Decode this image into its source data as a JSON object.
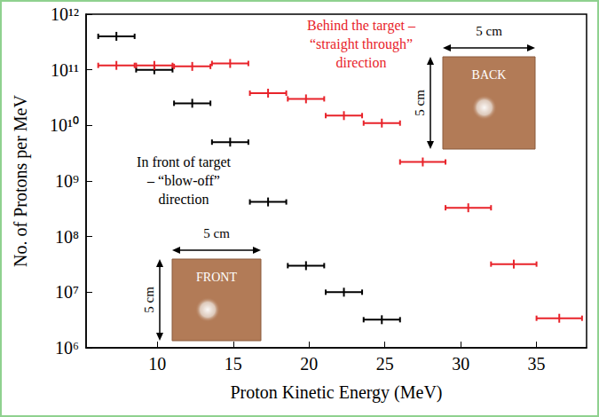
{
  "chart_data": {
    "type": "scatter",
    "x_label": "Proton Kinetic Energy (MeV)",
    "y_label": "No. of Protons per MeV",
    "log": "y",
    "grid": false,
    "xlim": [
      5.3,
      38.3
    ],
    "xticks": [
      10,
      15,
      20,
      25,
      30,
      35
    ],
    "ylim": [
      1000000,
      1000000000000
    ],
    "yticks": [
      {
        "value": 1000000,
        "label": "10⁶"
      },
      {
        "value": 10000000,
        "label": "10⁷"
      },
      {
        "value": 100000000,
        "label": "10⁸"
      },
      {
        "value": 1000000000,
        "label": "10⁹"
      },
      {
        "value": 10000000000,
        "label": "10¹⁰"
      },
      {
        "value": 100000000000,
        "label": "10¹¹"
      },
      {
        "value": 1000000000000,
        "label": "10¹²"
      }
    ],
    "series": [
      {
        "color": "#000000",
        "marker": "cross",
        "x": [
          7.3,
          9.8,
          12.3,
          14.8,
          17.3,
          19.8,
          22.3,
          24.8
        ],
        "xerr": [
          1.2,
          1.2,
          1.2,
          1.2,
          1.2,
          1.2,
          1.2,
          1.2
        ],
        "values": [
          400000000000,
          100000000000,
          25000000000,
          5000000000,
          420000000,
          30000000,
          10000000,
          3200000
        ]
      },
      {
        "color": "#e8232a",
        "marker": "cross",
        "x": [
          7.3,
          9.8,
          12.3,
          14.8,
          17.3,
          19.8,
          22.3,
          24.8,
          27.5,
          30.5,
          33.5,
          36.5
        ],
        "xerr": [
          1.2,
          1.2,
          1.2,
          1.2,
          1.2,
          1.2,
          1.2,
          1.2,
          1.5,
          1.5,
          1.5,
          1.5
        ],
        "values": [
          120000000000,
          120000000000,
          115000000000,
          130000000000,
          38000000000,
          30000000000,
          15000000000,
          11000000000,
          2200000000,
          330000000,
          32000000,
          3400000
        ]
      }
    ],
    "annotations": [
      {
        "text": "Behind the target –\n“straight through”\ndirection",
        "color": "#e8232a"
      },
      {
        "text": "In front of target\n– “blow-off”\ndirection",
        "color": "#000000"
      }
    ],
    "insets": [
      {
        "label": "BACK",
        "width_label": "5 cm",
        "height_label": "5 cm"
      },
      {
        "label": "FRONT",
        "width_label": "5 cm",
        "height_label": "5 cm"
      }
    ]
  }
}
